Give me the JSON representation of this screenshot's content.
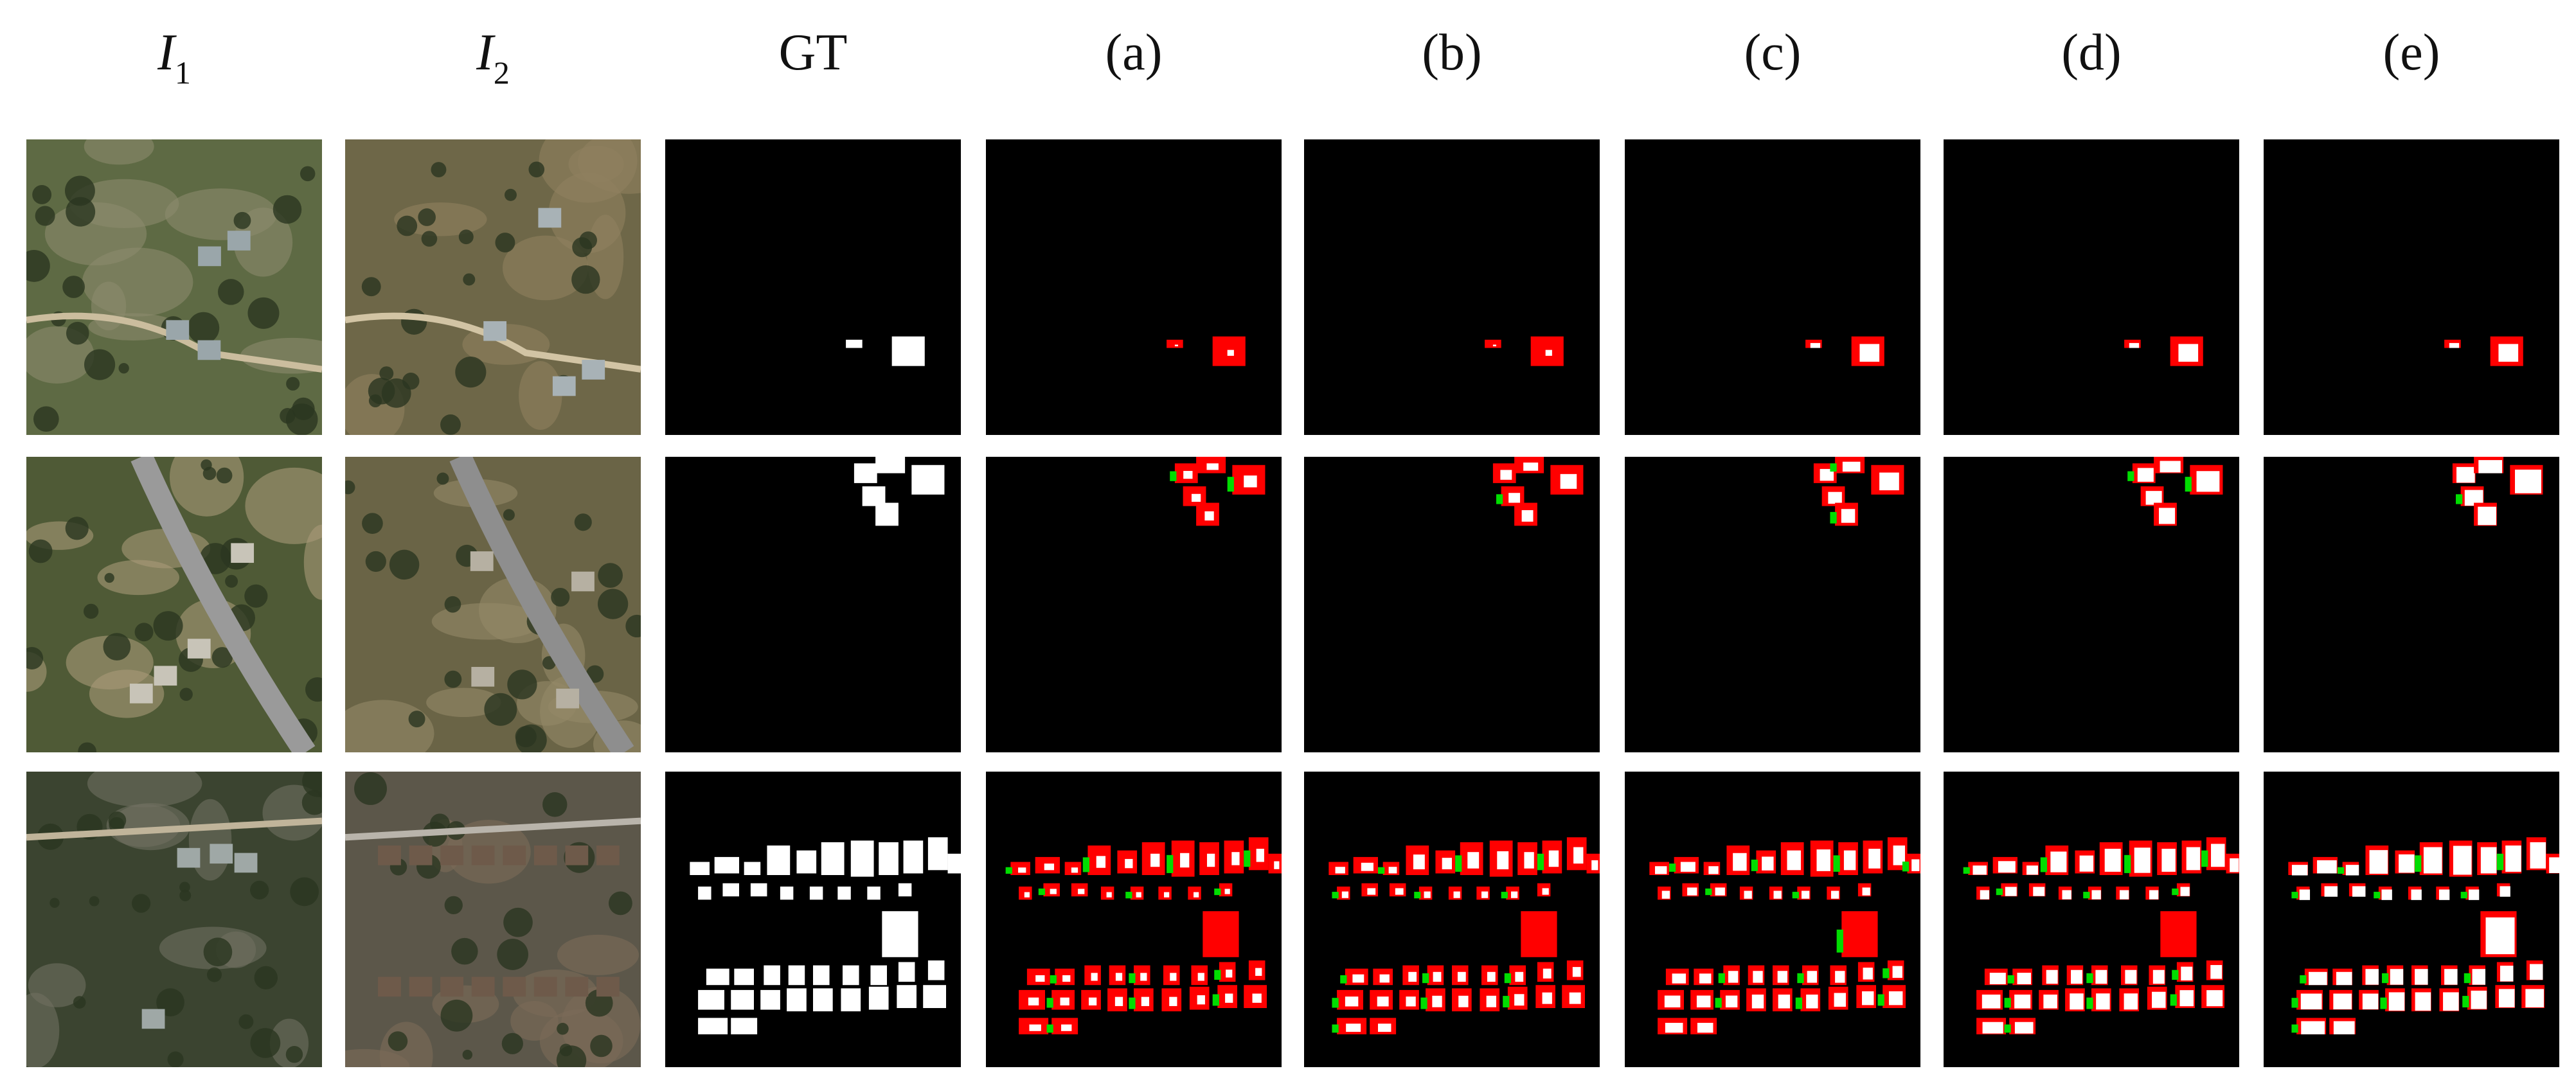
{
  "columns": [
    {
      "symbol": "I",
      "subscript": "1"
    },
    {
      "symbol": "I",
      "subscript": "2"
    },
    "GT",
    "(a)",
    "(b)",
    "(c)",
    "(d)",
    "(e)"
  ]
}
